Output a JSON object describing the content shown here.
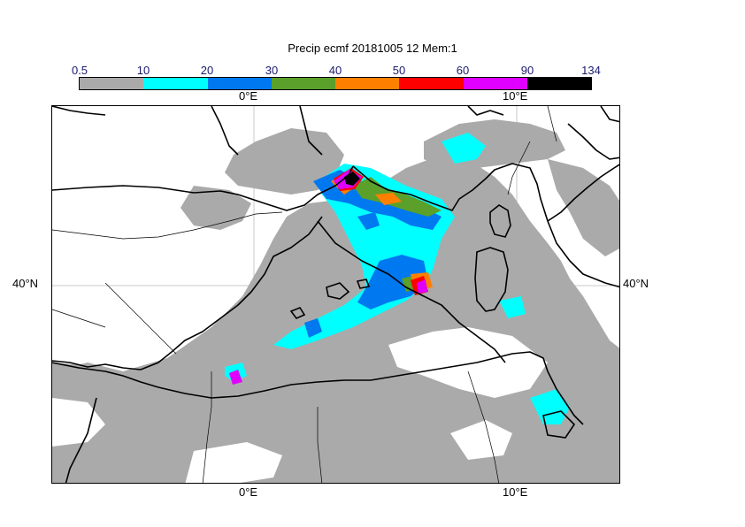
{
  "title": "Precip ecmf 20181005 12 Mem:1",
  "colorbar": {
    "levels": [
      "0.5",
      "10",
      "20",
      "30",
      "40",
      "50",
      "60",
      "90",
      "134"
    ],
    "colors": [
      "#aaaaaa",
      "#00ffff",
      "#0078f0",
      "#5aa02a",
      "#ff8000",
      "#ff0000",
      "#e000ff",
      "#000000"
    ]
  },
  "axes": {
    "lon_top": [
      "0°E",
      "10°E"
    ],
    "lon_bottom": [
      "0°E",
      "10°E"
    ],
    "lat_left": "40°N",
    "lat_right": "40°N"
  }
}
